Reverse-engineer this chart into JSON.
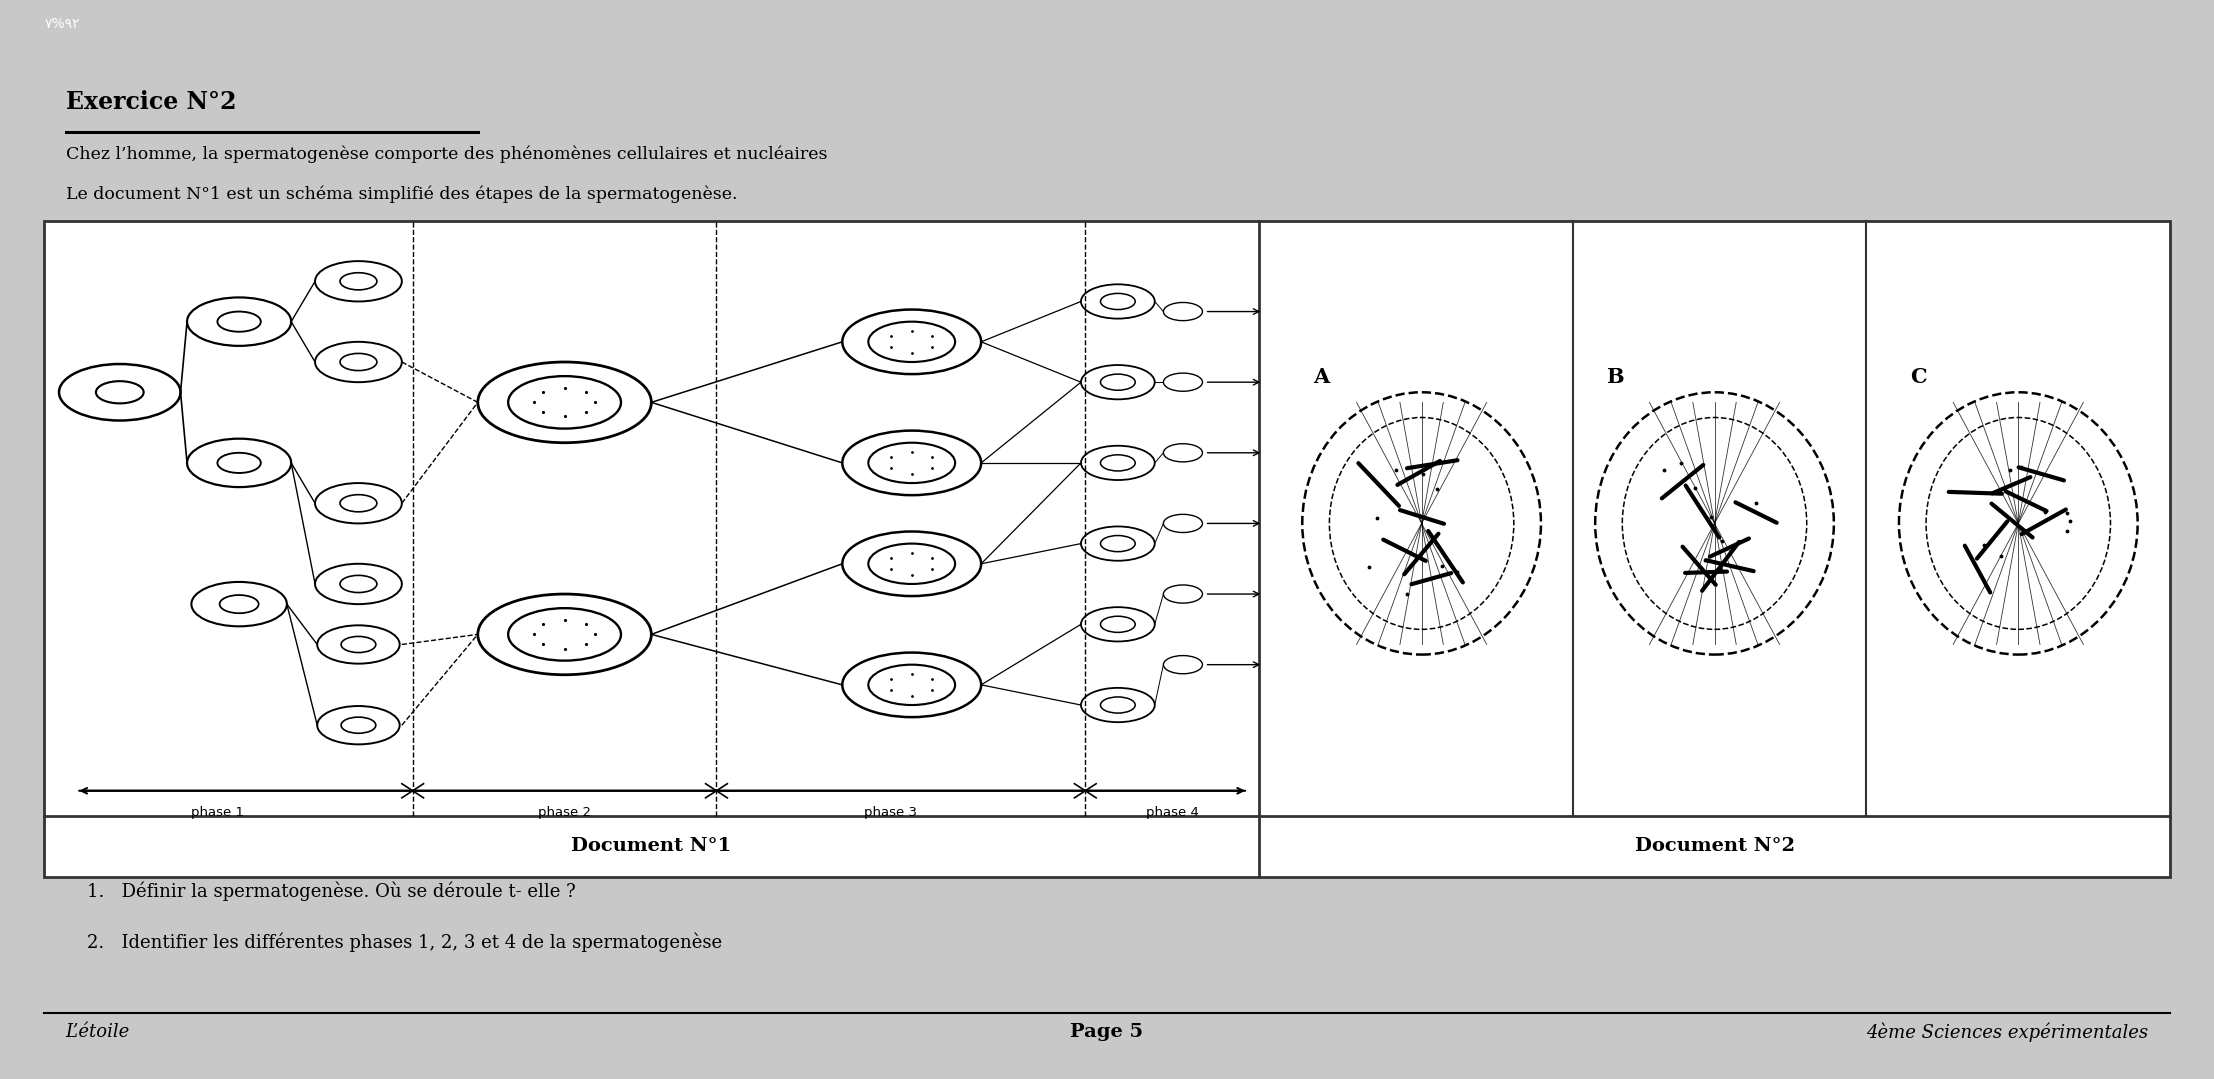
{
  "bg_top": "#1a1a1a",
  "bg_main": "#f5f5f5",
  "title": "Exercice N°2",
  "subtitle1": "Chez l’homme, la spermatogenèse comporte des phénomènes cellulaires et nucléaires",
  "subtitle2": "Le document N°1 est un schéma simplifié des étapes de la spermatogenèse.",
  "doc1_label": "Document N°1",
  "doc2_label": "Document N°2",
  "q1": "1.   Définir la spermatogenèse. Où se déroule t- elle ?",
  "q2": "2.   Identifier les différentes phases 1, 2, 3 et 4 de la spermatogenèse",
  "footer_left": "L’étoile",
  "footer_center": "Page 5",
  "footer_right": "4ème Sciences expérimentales",
  "phase1": "phase 1",
  "phase2": "phase 2",
  "phase3": "phase 3",
  "phase4": "phase 4",
  "cell_A": "A",
  "cell_B": "B",
  "cell_C": "C",
  "status_bar_text": "٧%۹۲"
}
